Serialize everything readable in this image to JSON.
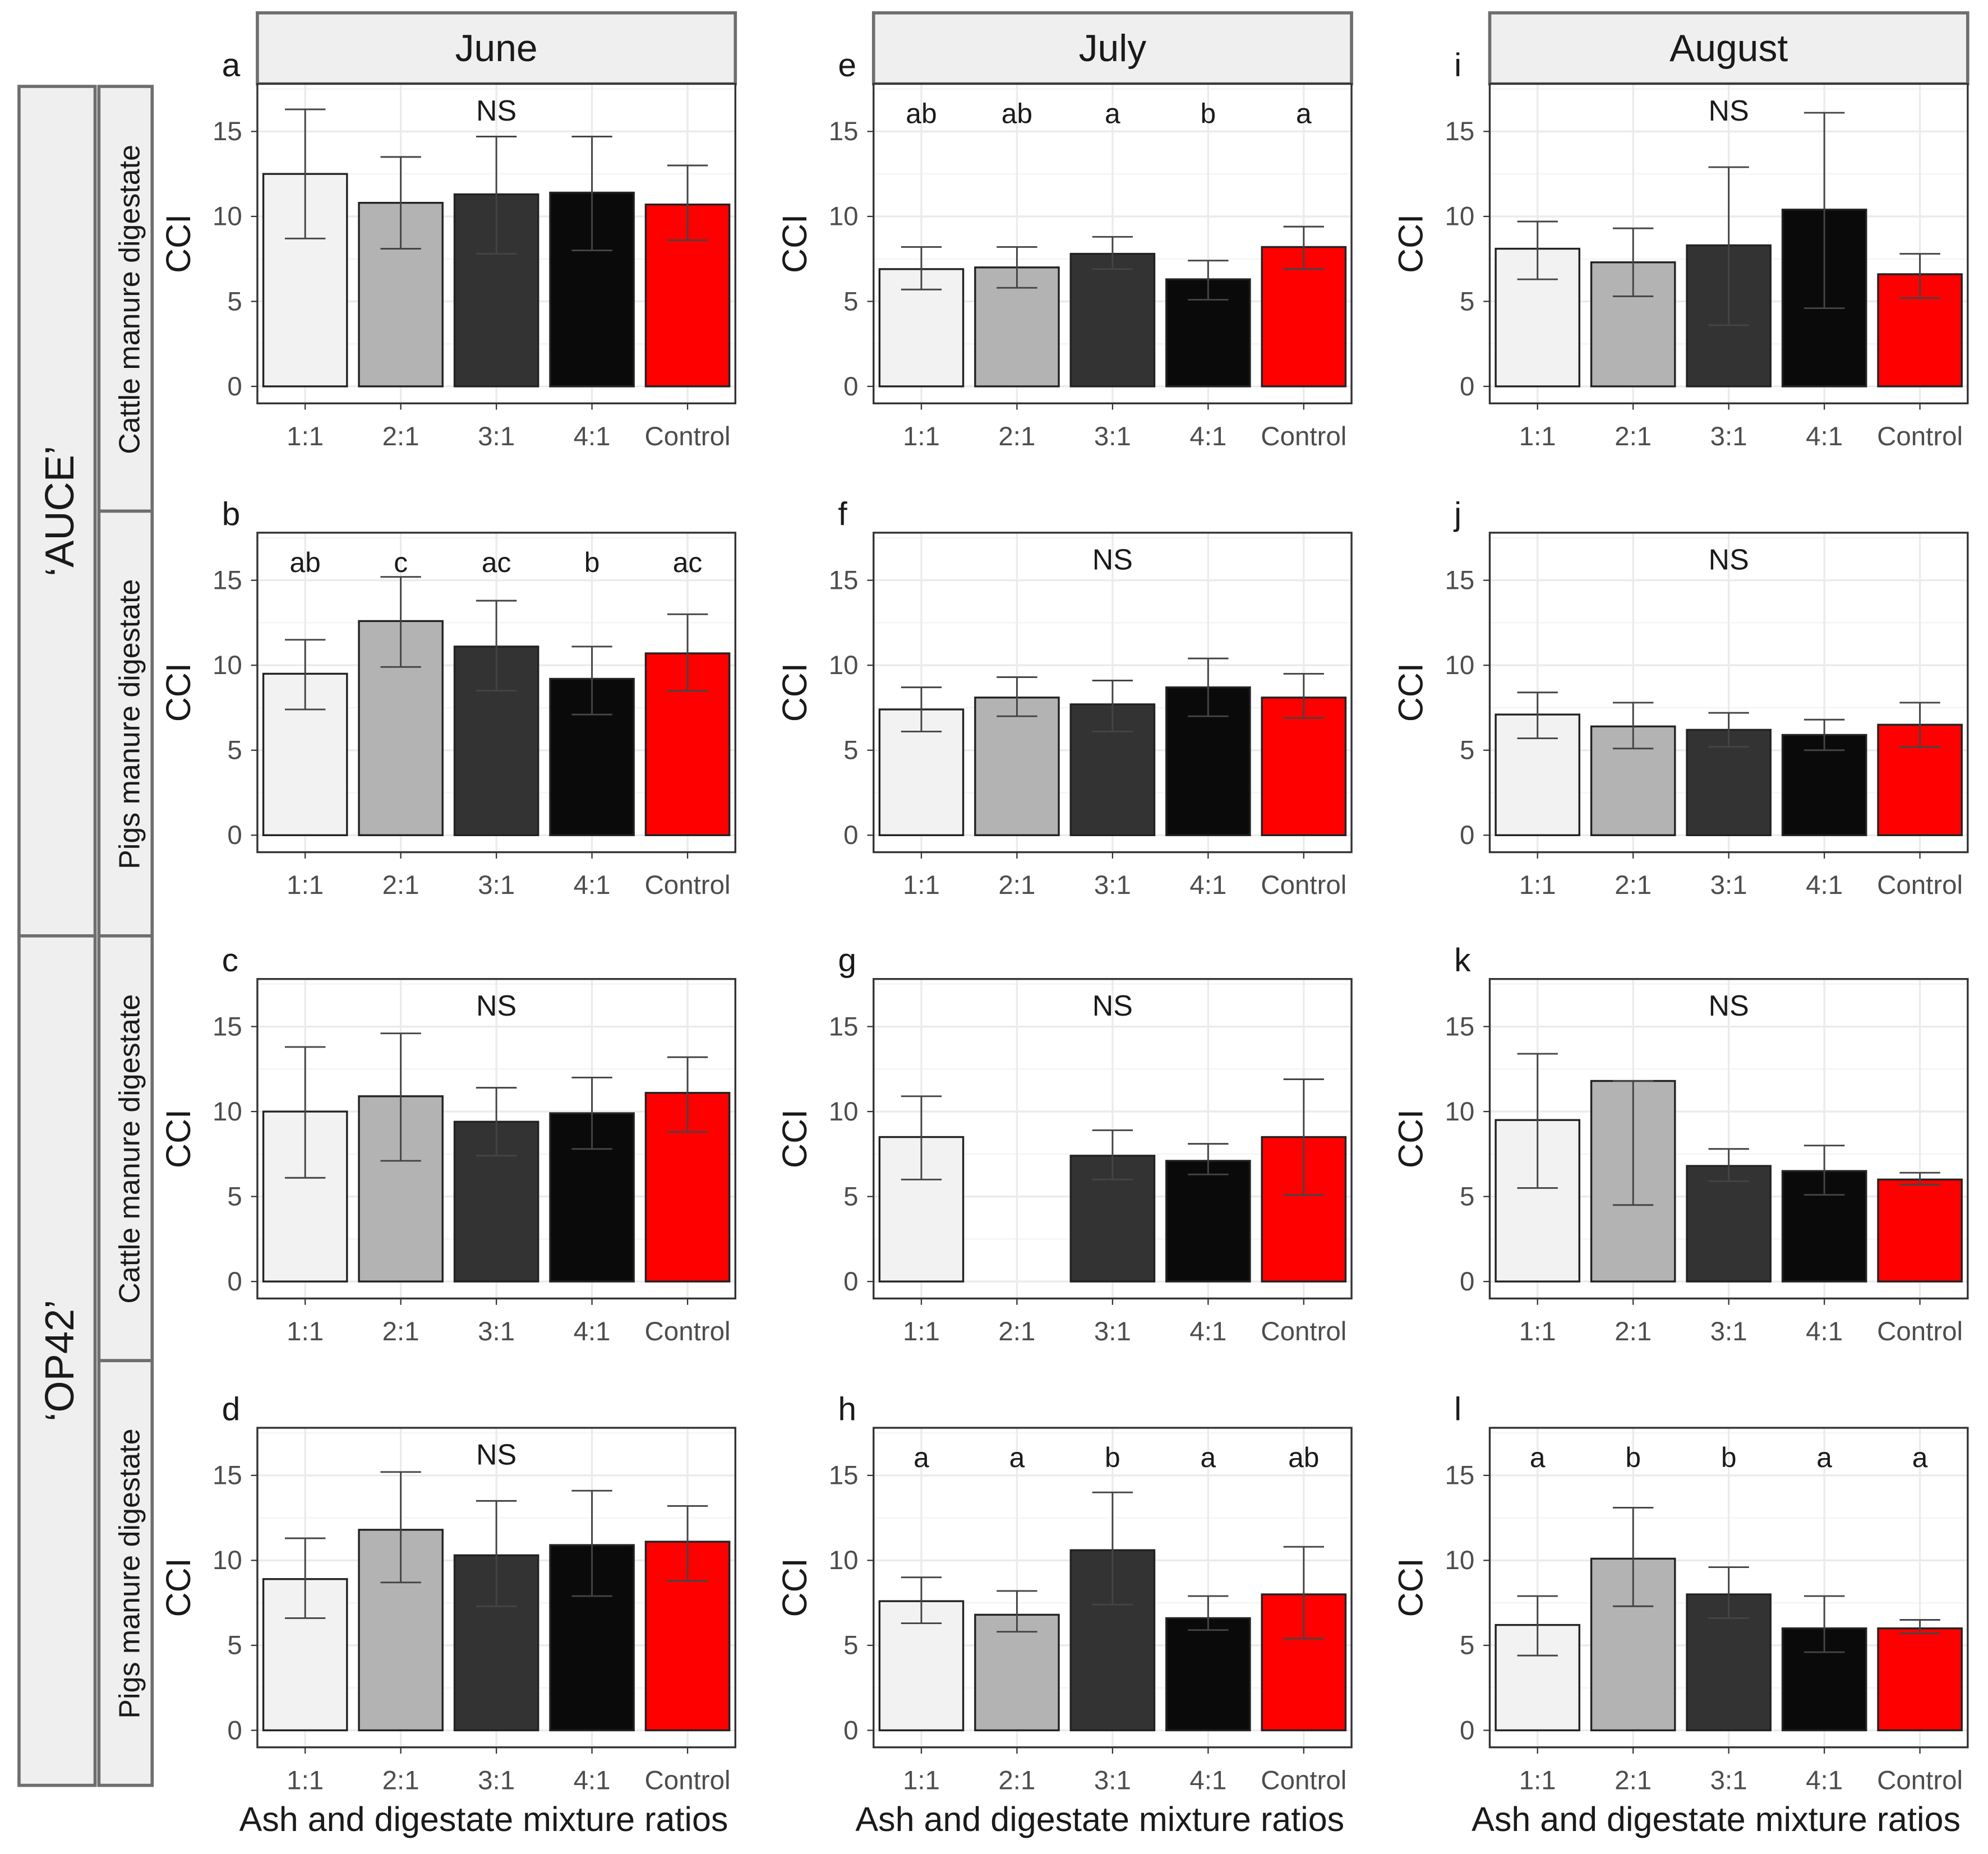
{
  "chart_data": {
    "type": "bar",
    "ylabel": "CCI",
    "xlabel": "Ash and digestate mixture ratios",
    "categories": [
      "1:1",
      "2:1",
      "3:1",
      "4:1",
      "Control"
    ],
    "colors": [
      "#f2f2f2",
      "#b3b3b3",
      "#333333",
      "#0a0a0a",
      "#ff0000"
    ],
    "yticks": [
      0,
      5,
      10,
      15
    ],
    "ylim": [
      -1,
      17.8
    ],
    "columns": [
      "June",
      "July",
      "August"
    ],
    "outer_rows": [
      "‘AUCE’",
      "‘OP42’"
    ],
    "inner_rows": [
      "Cattle manure digestate",
      "Pigs manure digestate",
      "Cattle manure digestate",
      "Pigs manure digestate"
    ],
    "panels": [
      {
        "label": "a",
        "month": "June",
        "row": 0,
        "letters": [
          "NS"
        ],
        "values": [
          12.5,
          10.8,
          11.3,
          11.4,
          10.7
        ],
        "err_low": [
          8.7,
          8.1,
          7.8,
          8.0,
          8.6
        ],
        "err_high": [
          16.3,
          13.5,
          14.7,
          14.7,
          13.0
        ]
      },
      {
        "label": "b",
        "month": "June",
        "row": 1,
        "letters": [
          "ab",
          "c",
          "ac",
          "b",
          "ac"
        ],
        "values": [
          9.5,
          12.6,
          11.1,
          9.2,
          10.7
        ],
        "err_low": [
          7.4,
          9.9,
          8.5,
          7.1,
          8.5
        ],
        "err_high": [
          11.5,
          15.2,
          13.8,
          11.1,
          13.0
        ]
      },
      {
        "label": "c",
        "month": "June",
        "row": 2,
        "letters": [
          "NS"
        ],
        "values": [
          10.0,
          10.9,
          9.4,
          9.9,
          11.1
        ],
        "err_low": [
          6.1,
          7.1,
          7.4,
          7.8,
          8.8
        ],
        "err_high": [
          13.8,
          14.6,
          11.4,
          12.0,
          13.2
        ]
      },
      {
        "label": "d",
        "month": "June",
        "row": 3,
        "letters": [
          "NS"
        ],
        "values": [
          8.9,
          11.8,
          10.3,
          10.9,
          11.1
        ],
        "err_low": [
          6.6,
          8.7,
          7.3,
          7.9,
          8.8
        ],
        "err_high": [
          11.3,
          15.2,
          13.5,
          14.1,
          13.2
        ]
      },
      {
        "label": "e",
        "month": "July",
        "row": 0,
        "letters": [
          "ab",
          "ab",
          "a",
          "b",
          "a"
        ],
        "values": [
          6.9,
          7.0,
          7.8,
          6.3,
          8.2
        ],
        "err_low": [
          5.7,
          5.8,
          6.9,
          5.1,
          6.9
        ],
        "err_high": [
          8.2,
          8.2,
          8.8,
          7.4,
          9.4
        ]
      },
      {
        "label": "f",
        "month": "July",
        "row": 1,
        "letters": [
          "NS"
        ],
        "values": [
          7.4,
          8.1,
          7.7,
          8.7,
          8.1
        ],
        "err_low": [
          6.1,
          7.0,
          6.1,
          7.0,
          6.9
        ],
        "err_high": [
          8.7,
          9.3,
          9.1,
          10.4,
          9.5
        ]
      },
      {
        "label": "g",
        "month": "July",
        "row": 2,
        "letters": [
          "NS"
        ],
        "values": [
          8.5,
          null,
          7.4,
          7.1,
          8.5
        ],
        "err_low": [
          6.0,
          null,
          6.0,
          6.3,
          5.1
        ],
        "err_high": [
          10.9,
          null,
          8.9,
          8.1,
          11.9
        ]
      },
      {
        "label": "h",
        "month": "July",
        "row": 3,
        "letters": [
          "a",
          "a",
          "b",
          "a",
          "ab"
        ],
        "values": [
          7.6,
          6.8,
          10.6,
          6.6,
          8.0
        ],
        "err_low": [
          6.3,
          5.8,
          7.4,
          5.9,
          5.4
        ],
        "err_high": [
          9.0,
          8.2,
          14.0,
          7.9,
          10.8
        ]
      },
      {
        "label": "i",
        "month": "August",
        "row": 0,
        "letters": [
          "NS"
        ],
        "values": [
          8.1,
          7.3,
          8.3,
          10.4,
          6.6
        ],
        "err_low": [
          6.3,
          5.3,
          3.6,
          4.6,
          5.2
        ],
        "err_high": [
          9.7,
          9.3,
          12.9,
          16.1,
          7.8
        ]
      },
      {
        "label": "j",
        "month": "August",
        "row": 1,
        "letters": [
          "NS"
        ],
        "values": [
          7.1,
          6.4,
          6.2,
          5.9,
          6.5
        ],
        "err_low": [
          5.7,
          5.1,
          5.2,
          5.0,
          5.2
        ],
        "err_high": [
          8.4,
          7.8,
          7.2,
          6.8,
          7.8
        ]
      },
      {
        "label": "k",
        "month": "August",
        "row": 2,
        "letters": [
          "NS"
        ],
        "values": [
          9.5,
          11.8,
          6.8,
          6.5,
          6.0
        ],
        "err_low": [
          5.5,
          4.5,
          5.9,
          5.1,
          5.7
        ],
        "err_high": [
          13.4,
          11.8,
          7.8,
          8.0,
          6.4
        ]
      },
      {
        "label": "l",
        "month": "August",
        "row": 3,
        "letters": [
          "a",
          "b",
          "b",
          "a",
          "a"
        ],
        "values": [
          6.2,
          10.1,
          8.0,
          6.0,
          6.0
        ],
        "err_low": [
          4.4,
          7.3,
          6.6,
          4.6,
          5.7
        ],
        "err_high": [
          7.9,
          13.1,
          9.6,
          7.9,
          6.5
        ]
      }
    ]
  }
}
